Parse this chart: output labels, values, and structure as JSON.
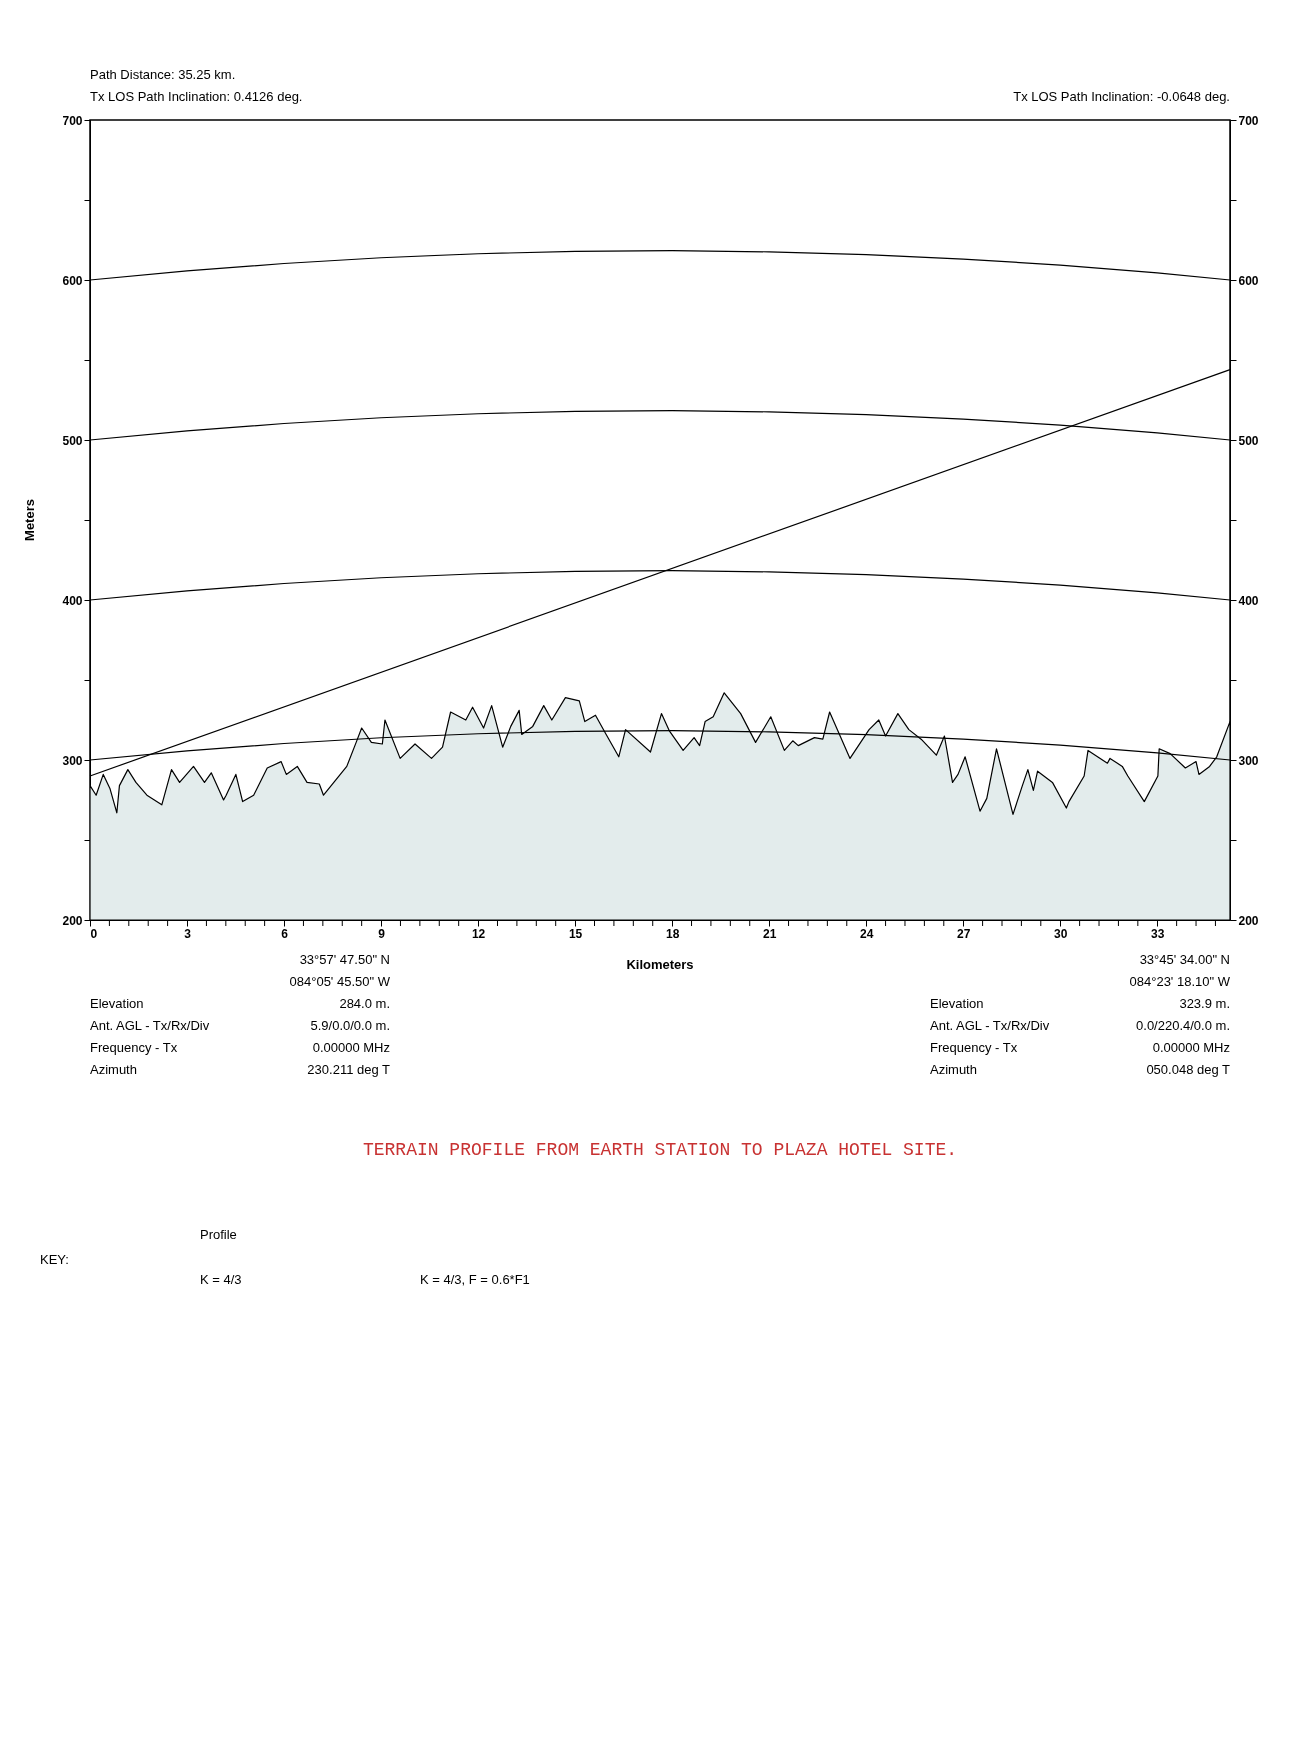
{
  "chart_data": {
    "type": "line",
    "title": "TERRAIN PROFILE FROM EARTH STATION TO PLAZA HOTEL SITE.",
    "xlabel": "Kilometers",
    "ylabel": "Meters",
    "xlim": [
      0,
      35.25
    ],
    "ylim": [
      200,
      700
    ],
    "y2lim": [
      200,
      700
    ],
    "xticks": [
      0,
      {
        "value": 0.6,
        "label": null
      },
      {
        "value": 1.2,
        "label": null
      },
      {
        "value": 1.8,
        "label": null
      },
      {
        "value": 2.4,
        "label": null
      },
      3,
      {
        "value": 3.6,
        "label": null
      },
      {
        "value": 4.2,
        "label": null
      },
      {
        "value": 4.8,
        "label": null
      },
      {
        "value": 5.4,
        "label": null
      },
      6,
      {
        "value": 6.6,
        "label": null
      },
      {
        "value": 7.2,
        "label": null
      },
      {
        "value": 7.8,
        "label": null
      },
      {
        "value": 8.4,
        "label": null
      },
      9,
      {
        "value": 9.6,
        "label": null
      },
      {
        "value": 10.2,
        "label": null
      },
      {
        "value": 10.8,
        "label": null
      },
      {
        "value": 11.4,
        "label": null
      },
      12,
      {
        "value": 12.6,
        "label": null
      },
      {
        "value": 13.2,
        "label": null
      },
      {
        "value": 13.8,
        "label": null
      },
      {
        "value": 14.4,
        "label": null
      },
      15,
      {
        "value": 15.6,
        "label": null
      },
      {
        "value": 16.2,
        "label": null
      },
      {
        "value": 16.8,
        "label": null
      },
      {
        "value": 17.4,
        "label": null
      },
      18,
      {
        "value": 18.6,
        "label": null
      },
      {
        "value": 19.2,
        "label": null
      },
      {
        "value": 19.8,
        "label": null
      },
      {
        "value": 20.4,
        "label": null
      },
      21,
      {
        "value": 21.6,
        "label": null
      },
      {
        "value": 22.2,
        "label": null
      },
      {
        "value": 22.8,
        "label": null
      },
      {
        "value": 23.4,
        "label": null
      },
      24,
      {
        "value": 24.6,
        "label": null
      },
      {
        "value": 25.2,
        "label": null
      },
      {
        "value": 25.8,
        "label": null
      },
      {
        "value": 26.4,
        "label": null
      },
      27,
      {
        "value": 27.6,
        "label": null
      },
      {
        "value": 28.2,
        "label": null
      },
      {
        "value": 28.8,
        "label": null
      },
      {
        "value": 29.4,
        "label": null
      },
      30,
      {
        "value": 30.6,
        "label": null
      },
      {
        "value": 31.2,
        "label": null
      },
      {
        "value": 31.8,
        "label": null
      },
      {
        "value": 32.4,
        "label": null
      },
      33,
      {
        "value": 33.6,
        "label": null
      },
      {
        "value": 34.2,
        "label": null
      },
      {
        "value": 34.8,
        "label": null
      }
    ],
    "yticks": [
      200,
      {
        "value": 250,
        "label": null
      },
      300,
      {
        "value": 350,
        "label": null
      },
      400,
      {
        "value": 450,
        "label": null
      },
      500,
      {
        "value": 550,
        "label": null
      },
      600,
      {
        "value": 650,
        "label": null
      },
      700
    ],
    "y2ticks": [
      200,
      {
        "value": 250,
        "label": null
      },
      300,
      {
        "value": 350,
        "label": null
      },
      400,
      {
        "value": 450,
        "label": null
      },
      500,
      {
        "value": 550,
        "label": null
      },
      600,
      {
        "value": 650,
        "label": null
      },
      700
    ],
    "grid": false,
    "series": [
      {
        "type": "area",
        "color": "#e3ecec",
        "x": [
          0,
          0.19,
          0.41,
          0.62,
          0.83,
          0.91,
          1.17,
          1.42,
          1.76,
          2.22,
          2.52,
          2.77,
          3.2,
          3.54,
          3.75,
          4.13,
          4.21,
          4.51,
          4.72,
          5.06,
          5.48,
          5.91,
          6.07,
          6.41,
          6.71,
          7.09,
          7.22,
          7.94,
          8.23,
          8.4,
          8.7,
          9.04,
          9.12,
          9.59,
          10.05,
          10.56,
          10.9,
          11.15,
          11.62,
          11.83,
          12.17,
          12.42,
          12.76,
          13.01,
          13.27,
          13.35,
          13.69,
          14.03,
          14.28,
          14.7,
          15.13,
          15.3,
          15.63,
          15.93,
          16.35,
          16.56,
          17.33,
          17.67,
          17.92,
          18.34,
          18.68,
          18.85,
          19.02,
          19.27,
          19.61,
          20.12,
          20.58,
          21.05,
          21.47,
          21.73,
          21.9,
          22.4,
          22.66,
          22.87,
          23.5,
          24.09,
          24.39,
          24.6,
          24.98,
          25.32,
          25.7,
          26.17,
          26.42,
          26.67,
          26.84,
          27.06,
          27.52,
          27.73,
          28.03,
          28.54,
          28.83,
          29.0,
          29.17,
          29.3,
          29.76,
          30.19,
          30.27,
          30.74,
          30.86,
          31.46,
          31.54,
          31.92,
          32.09,
          32.6,
          33.02,
          33.06,
          33.4,
          33.87,
          34.2,
          34.29,
          34.62,
          34.84,
          35.25
        ],
        "values": [
          284,
          278,
          291,
          282,
          267,
          284,
          294,
          286,
          278,
          272,
          294,
          286,
          296,
          286,
          292,
          275,
          278,
          291,
          274,
          278,
          295,
          299,
          291,
          296,
          286,
          285,
          278,
          296,
          311,
          320,
          311,
          310,
          325,
          301,
          310,
          301,
          308,
          330,
          325,
          333,
          320,
          334,
          308,
          321,
          331,
          316,
          321,
          334,
          325,
          339,
          337,
          324,
          328,
          317,
          302,
          319,
          305,
          329,
          318,
          306,
          314,
          309,
          324,
          327,
          342,
          329,
          311,
          327,
          306,
          312,
          309,
          314,
          313,
          330,
          301,
          319,
          325,
          315,
          329,
          319,
          313,
          303,
          315,
          286,
          291,
          302,
          268,
          276,
          307,
          266,
          284,
          294,
          281,
          293,
          286,
          270,
          274,
          290,
          306,
          298,
          301,
          296,
          290,
          274,
          290,
          307,
          304,
          295,
          299,
          291,
          296,
          302,
          324
        ]
      },
      {
        "color": "#000000",
        "x": [
          0,
          3,
          6,
          9,
          12,
          15,
          18,
          21,
          24,
          27,
          30,
          33,
          35.25
        ],
        "values": [
          300,
          305.7,
          310.3,
          313.9,
          316.4,
          317.9,
          318.3,
          317.6,
          315.9,
          313.1,
          309.3,
          304.4,
          300
        ]
      },
      {
        "color": "#000000",
        "x": [
          0,
          3,
          6,
          9,
          12,
          15,
          18,
          21,
          24,
          27,
          30,
          33,
          35.25
        ],
        "values": [
          400,
          405.7,
          410.3,
          413.9,
          416.4,
          417.9,
          418.3,
          417.6,
          415.9,
          413.1,
          409.3,
          404.4,
          400
        ]
      },
      {
        "color": "#000000",
        "x": [
          0,
          3,
          6,
          9,
          12,
          15,
          18,
          21,
          24,
          27,
          30,
          33,
          35.25
        ],
        "values": [
          500,
          505.7,
          510.3,
          513.9,
          516.4,
          517.9,
          518.3,
          517.6,
          515.9,
          513.1,
          509.3,
          504.4,
          500
        ]
      },
      {
        "color": "#000000",
        "x": [
          0,
          3,
          6,
          9,
          12,
          15,
          18,
          21,
          24,
          27,
          30,
          33,
          35.25
        ],
        "values": [
          600,
          605.7,
          610.3,
          613.9,
          616.4,
          617.9,
          618.3,
          617.6,
          615.9,
          613.1,
          609.3,
          604.4,
          600
        ]
      },
      {
        "color": "#000000",
        "x": [
          0,
          35.25
        ],
        "values": [
          290,
          544
        ]
      }
    ],
    "annotations": [
      "Path Distance: 35.25 km.",
      "Tx LOS Path Inclination: 0.4126 deg.",
      "Tx LOS Path Inclination: -0.0648 deg.",
      "Elevation",
      "Ant. AGL - Tx/Rx/Div",
      "Frequency - Tx",
      "Azimuth",
      "33°57' 47.50\" N",
      "084°05' 45.50\" W",
      "284.0 m.",
      "5.9/0.0/0.0 m.",
      "0.00000 MHz",
      "230.211 deg T",
      "Elevation",
      "Ant. AGL - Tx/Rx/Div",
      "Frequency - Tx",
      "Azimuth",
      "33°45' 34.00\" N",
      "084°23' 18.10\" W",
      "323.9 m.",
      "0.0/220.4/0.0 m.",
      "0.00000 MHz",
      "050.048 deg T",
      "KEY:",
      "Profile",
      "K = 4/3",
      "K = 4/3, F = 0.6*F1"
    ]
  }
}
